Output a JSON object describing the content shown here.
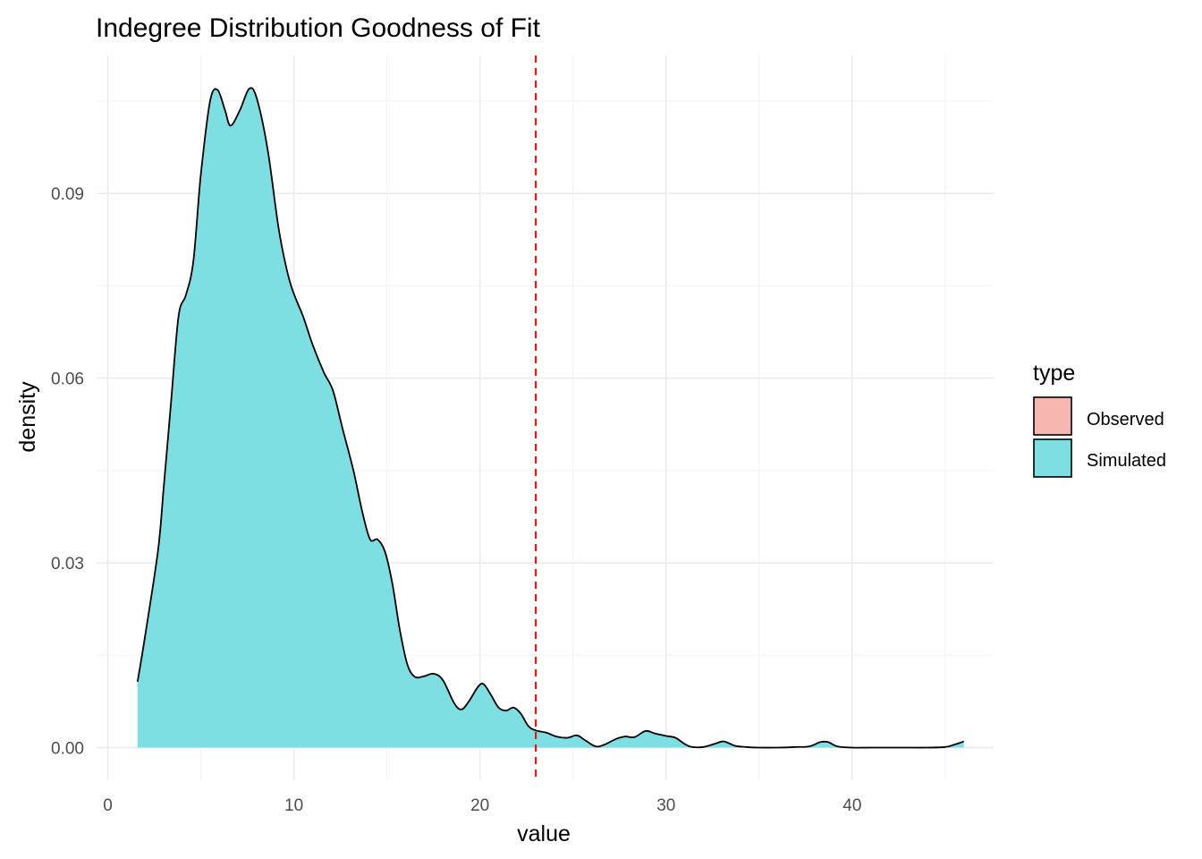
{
  "chart_data": {
    "type": "area",
    "title": "Indegree Distribution Goodness of Fit",
    "xlabel": "value",
    "ylabel": "density",
    "xlim": [
      -0.6,
      47.6
    ],
    "ylim": [
      -0.0053,
      0.1124
    ],
    "x_ticks": [
      0,
      10,
      20,
      30,
      40
    ],
    "x_tick_labels": [
      "0",
      "10",
      "20",
      "30",
      "40"
    ],
    "y_ticks": [
      0.0,
      0.03,
      0.06,
      0.09
    ],
    "y_tick_labels": [
      "0.00",
      "0.03",
      "0.06",
      "0.09"
    ],
    "grid": true,
    "reference_line": {
      "x": 23,
      "style": "dashed",
      "color": "#ff0000"
    },
    "legend": {
      "title": "type",
      "position": "right",
      "entries": [
        {
          "label": "Observed",
          "color": "#f8b6b1"
        },
        {
          "label": "Simulated",
          "color": "#7ddfe1"
        }
      ]
    },
    "series": [
      {
        "name": "Simulated",
        "color": "#7ddfe1",
        "points": [
          [
            1.6,
            0.0107
          ],
          [
            2.0,
            0.018
          ],
          [
            2.7,
            0.032
          ],
          [
            3.0,
            0.042
          ],
          [
            3.4,
            0.056
          ],
          [
            3.8,
            0.07
          ],
          [
            4.2,
            0.0735
          ],
          [
            4.6,
            0.079
          ],
          [
            5.0,
            0.093
          ],
          [
            5.5,
            0.105
          ],
          [
            5.9,
            0.1068
          ],
          [
            6.3,
            0.1035
          ],
          [
            6.6,
            0.101
          ],
          [
            7.1,
            0.1035
          ],
          [
            7.6,
            0.107
          ],
          [
            8.0,
            0.1055
          ],
          [
            8.6,
            0.097
          ],
          [
            9.2,
            0.084
          ],
          [
            9.8,
            0.0755
          ],
          [
            10.5,
            0.07
          ],
          [
            11.0,
            0.0655
          ],
          [
            11.6,
            0.061
          ],
          [
            12.1,
            0.058
          ],
          [
            12.6,
            0.052
          ],
          [
            13.2,
            0.045
          ],
          [
            13.7,
            0.038
          ],
          [
            14.1,
            0.0338
          ],
          [
            14.5,
            0.0338
          ],
          [
            14.9,
            0.0318
          ],
          [
            15.3,
            0.0265
          ],
          [
            15.7,
            0.019
          ],
          [
            16.1,
            0.0135
          ],
          [
            16.5,
            0.0115
          ],
          [
            17.0,
            0.0116
          ],
          [
            17.5,
            0.012
          ],
          [
            18.0,
            0.011
          ],
          [
            18.6,
            0.0073
          ],
          [
            19.0,
            0.0062
          ],
          [
            19.4,
            0.0075
          ],
          [
            19.9,
            0.0099
          ],
          [
            20.2,
            0.0103
          ],
          [
            20.6,
            0.0085
          ],
          [
            21.0,
            0.0065
          ],
          [
            21.4,
            0.006
          ],
          [
            21.8,
            0.0065
          ],
          [
            22.2,
            0.0055
          ],
          [
            22.6,
            0.0035
          ],
          [
            23.0,
            0.0028
          ],
          [
            23.6,
            0.0024
          ],
          [
            24.1,
            0.0018
          ],
          [
            24.7,
            0.0016
          ],
          [
            25.2,
            0.002
          ],
          [
            25.6,
            0.0013
          ],
          [
            26.2,
            0.0002
          ],
          [
            26.7,
            0.0005
          ],
          [
            27.3,
            0.0014
          ],
          [
            27.8,
            0.0018
          ],
          [
            28.3,
            0.0017
          ],
          [
            28.9,
            0.0027
          ],
          [
            29.4,
            0.0023
          ],
          [
            30.0,
            0.0019
          ],
          [
            30.5,
            0.0016
          ],
          [
            31.0,
            0.0006
          ],
          [
            31.4,
            0.0001
          ],
          [
            32.0,
            0.0001
          ],
          [
            32.6,
            0.0006
          ],
          [
            33.1,
            0.001
          ],
          [
            33.7,
            0.0003
          ],
          [
            34.3,
            0.0001
          ],
          [
            35.0,
            0.0
          ],
          [
            36.0,
            0.0
          ],
          [
            37.0,
            0.0001
          ],
          [
            37.7,
            0.0002
          ],
          [
            38.3,
            0.0009
          ],
          [
            38.7,
            0.0009
          ],
          [
            39.2,
            0.0002
          ],
          [
            40.0,
            0.0
          ],
          [
            41.0,
            0.0
          ],
          [
            42.0,
            0.0
          ],
          [
            43.0,
            0.0
          ],
          [
            44.0,
            0.0
          ],
          [
            45.0,
            0.0001
          ],
          [
            45.5,
            0.0005
          ],
          [
            46.0,
            0.001
          ]
        ]
      }
    ]
  }
}
